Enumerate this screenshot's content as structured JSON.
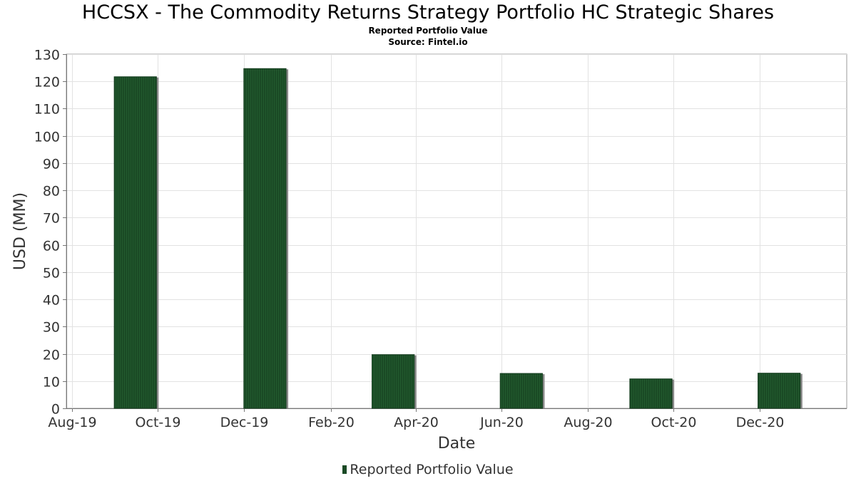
{
  "chart_data": {
    "type": "bar",
    "title": "HCCSX - The Commodity Returns Strategy Portfolio HC Strategic Shares",
    "subtitles": [
      "Reported Portfolio Value",
      "Source: Fintel.io"
    ],
    "xlabel": "Date",
    "ylabel": "USD (MM)",
    "ylim": [
      0,
      130
    ],
    "yticks": [
      0,
      10,
      20,
      30,
      40,
      50,
      60,
      70,
      80,
      90,
      100,
      110,
      120,
      130
    ],
    "xrange": [
      "2019-07-28",
      "2021-02-01"
    ],
    "xticks": [
      {
        "date": "2019-08-01",
        "label": "Aug-19"
      },
      {
        "date": "2019-10-01",
        "label": "Oct-19"
      },
      {
        "date": "2019-12-01",
        "label": "Dec-19"
      },
      {
        "date": "2020-02-01",
        "label": "Feb-20"
      },
      {
        "date": "2020-04-01",
        "label": "Apr-20"
      },
      {
        "date": "2020-06-01",
        "label": "Jun-20"
      },
      {
        "date": "2020-08-01",
        "label": "Aug-20"
      },
      {
        "date": "2020-10-01",
        "label": "Oct-20"
      },
      {
        "date": "2020-12-01",
        "label": "Dec-20"
      }
    ],
    "grid": true,
    "legend": "bottom-center",
    "series": [
      {
        "name": "Reported Portfolio Value",
        "color": "#1a4a25",
        "points": [
          {
            "date": "2019-09-15",
            "value": 121.7
          },
          {
            "date": "2019-12-16",
            "value": 124.7
          },
          {
            "date": "2020-03-16",
            "value": 19.7
          },
          {
            "date": "2020-06-15",
            "value": 12.8
          },
          {
            "date": "2020-09-15",
            "value": 10.8
          },
          {
            "date": "2020-12-15",
            "value": 12.9
          }
        ]
      }
    ]
  }
}
